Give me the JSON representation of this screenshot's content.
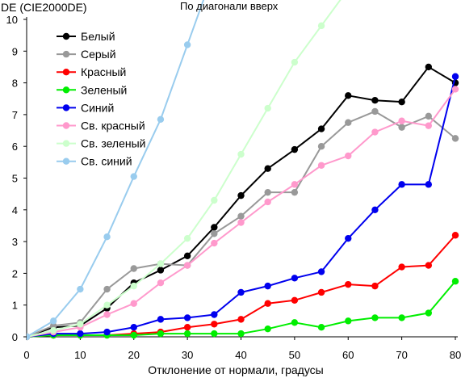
{
  "chart_data": {
    "type": "line",
    "title": "По диагонали вверх",
    "xlabel": "Отклонение от нормали, градусы",
    "ylabel": "DE (CIE2000DE)",
    "xlim": [
      0,
      80
    ],
    "ylim": [
      0,
      10
    ],
    "xticks": [
      0,
      10,
      20,
      30,
      40,
      50,
      60,
      70,
      80
    ],
    "yticks": [
      0,
      1,
      2,
      3,
      4,
      5,
      6,
      7,
      8,
      9,
      10
    ],
    "grid": false,
    "legend_position": "top-left",
    "x": [
      0,
      5,
      10,
      15,
      20,
      25,
      30,
      35,
      40,
      45,
      50,
      55,
      60,
      65,
      70,
      75,
      80
    ],
    "series": [
      {
        "name": "Белый",
        "color": "#000000",
        "x": [
          0,
          5,
          10,
          15,
          20,
          25,
          30,
          35,
          40,
          45,
          50,
          55,
          60,
          65,
          70,
          75,
          80
        ],
        "values": [
          0,
          0.3,
          0.35,
          0.9,
          1.7,
          2.1,
          2.55,
          3.45,
          4.45,
          5.3,
          5.9,
          6.55,
          7.6,
          7.45,
          7.4,
          8.5,
          8.0
        ]
      },
      {
        "name": "Серый",
        "color": "#999999",
        "x": [
          0,
          5,
          10,
          15,
          20,
          25,
          30,
          35,
          40,
          45,
          50,
          55,
          60,
          65,
          70,
          75,
          80
        ],
        "values": [
          0,
          0.35,
          0.45,
          1.5,
          2.15,
          2.3,
          2.25,
          3.25,
          3.8,
          4.55,
          4.55,
          6.0,
          6.75,
          7.1,
          6.6,
          6.95,
          6.25
        ]
      },
      {
        "name": "Красный",
        "color": "#ff0000",
        "x": [
          0,
          5,
          10,
          15,
          20,
          25,
          30,
          35,
          40,
          45,
          50,
          55,
          60,
          65,
          70,
          75,
          80
        ],
        "values": [
          0,
          0.05,
          0.05,
          0.05,
          0.1,
          0.15,
          0.3,
          0.4,
          0.55,
          1.05,
          1.15,
          1.4,
          1.65,
          1.6,
          2.2,
          2.25,
          3.2
        ]
      },
      {
        "name": "Зеленый",
        "color": "#00ee00",
        "x": [
          0,
          5,
          10,
          15,
          20,
          25,
          30,
          35,
          40,
          45,
          50,
          55,
          60,
          65,
          70,
          75,
          80
        ],
        "values": [
          0,
          0.05,
          0.05,
          0.05,
          0.05,
          0.1,
          0.1,
          0.1,
          0.1,
          0.25,
          0.45,
          0.3,
          0.5,
          0.6,
          0.6,
          0.75,
          1.75
        ]
      },
      {
        "name": "Синий",
        "color": "#0000ee",
        "x": [
          0,
          5,
          10,
          15,
          20,
          25,
          30,
          35,
          40,
          45,
          50,
          55,
          60,
          65,
          70,
          75,
          80
        ],
        "values": [
          0,
          0.1,
          0.1,
          0.15,
          0.3,
          0.55,
          0.6,
          0.7,
          1.4,
          1.6,
          1.85,
          2.05,
          3.1,
          4.0,
          4.8,
          4.8,
          8.2
        ]
      },
      {
        "name": "Св. красный",
        "color": "#ff99cc",
        "x": [
          0,
          5,
          10,
          15,
          20,
          25,
          30,
          35,
          40,
          45,
          50,
          55,
          60,
          65,
          70,
          75,
          80
        ],
        "values": [
          0,
          0.15,
          0.3,
          0.7,
          1.05,
          1.7,
          2.25,
          2.95,
          3.6,
          4.25,
          4.8,
          5.4,
          5.7,
          6.45,
          6.8,
          6.65,
          7.8
        ]
      },
      {
        "name": "Св. зеленый",
        "color": "#ccffcc",
        "x": [
          0,
          5,
          10,
          15,
          20,
          25,
          30,
          35,
          40,
          45,
          50,
          55
        ],
        "values": [
          0,
          0.2,
          0.4,
          1.0,
          1.6,
          2.3,
          3.1,
          4.3,
          5.75,
          7.2,
          8.65,
          9.8
        ]
      },
      {
        "name": "Св. синий",
        "color": "#99ccee",
        "x": [
          0,
          5,
          10,
          15,
          20,
          25,
          30
        ],
        "values": [
          0,
          0.5,
          1.5,
          3.15,
          5.05,
          6.85,
          9.2
        ]
      }
    ]
  }
}
